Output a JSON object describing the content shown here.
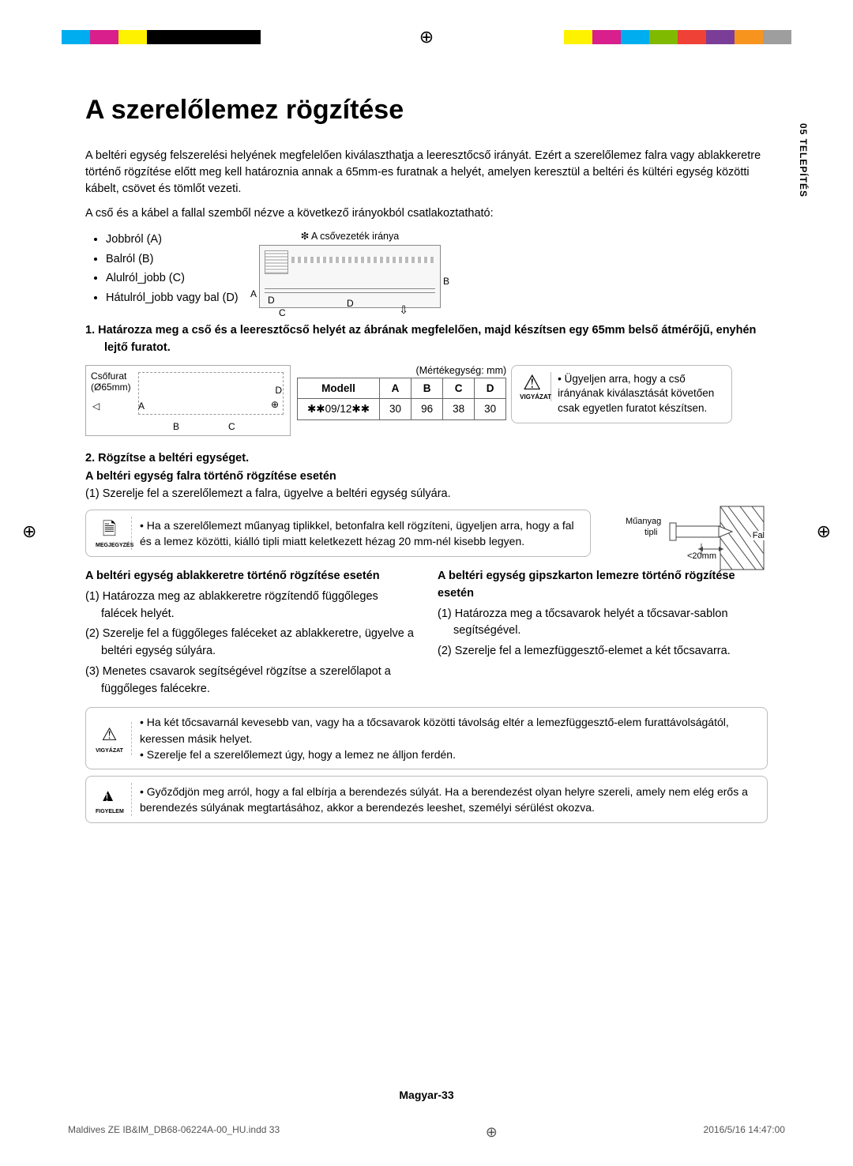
{
  "printbar": {
    "left_colors": [
      "#00aeef",
      "#d81f8c",
      "#fff200",
      "#000000",
      "#000000",
      "#000000",
      "#000000"
    ],
    "right_colors": [
      "#fff200",
      "#d81f8c",
      "#00aeef",
      "#7fba00",
      "#ef4136",
      "#7a3e98",
      "#f7941d",
      "#9e9e9e"
    ]
  },
  "sidetab": "05   TELEPÍTÉS",
  "title": "A szerelőlemez rögzítése",
  "intro1": "A beltéri egység felszerelési helyének megfelelően kiválaszthatja a leeresztőcső irányát. Ezért a szerelőlemez falra vagy ablakkeretre történő rögzítése előtt meg kell határoznia annak a 65mm-es furatnak a helyét, amelyen keresztül a beltéri és kültéri egység közötti kábelt, csövet és tömlőt vezeti.",
  "intro2": "A cső és a kábel a fallal szemből nézve a következő irányokból csatlakoztatható:",
  "directions": [
    "Jobbról (A)",
    "Balról (B)",
    "Alulról_jobb (C)",
    "Hátulról_jobb vagy bal (D)"
  ],
  "pipedir_label": "❇ A csővezeték iránya",
  "diagram_letters": {
    "a": "A",
    "b": "B",
    "c": "C",
    "d": "D",
    "d2": "D"
  },
  "step1": "1.   Határozza meg a cső és a leeresztőcső helyét az ábrának megfelelően, majd készítsen egy 65mm belső átmérőjű, enyhén lejtő furatot.",
  "drill_label1": "Csőfurat",
  "drill_label2": "(Ø65mm)",
  "unit_label": "(Mértékegység: mm)",
  "table": {
    "headers": [
      "Modell",
      "A",
      "B",
      "C",
      "D"
    ],
    "row": [
      "✱✱09/12✱✱",
      "30",
      "96",
      "38",
      "30"
    ]
  },
  "caution1": "Ügyeljen arra, hogy a cső irányának kiválasztását követően csak egyetlen furatot készítsen.",
  "caution_label": "VIGYÁZAT",
  "step2": "2.   Rögzítse a beltéri egységet.",
  "sub_wall_title": "A beltéri egység falra történő rögzítése esetén",
  "sub_wall_1": "(1) Szerelje fel a szerelőlemezt a falra, ügyelve a beltéri egység súlyára.",
  "note1": "Ha a szerelőlemezt műanyag tiplikkel, betonfalra kell rögzíteni, ügyeljen arra, hogy a fal és a lemez közötti, kiálló tipli miatt keletkezett hézag 20 mm-nél kisebb legyen.",
  "note_label": "MEGJEGYZÉS",
  "anchor": {
    "l1": "Műanyag",
    "l2": "tipli",
    "l3": "Fal",
    "l4": "<20mm"
  },
  "col_left_title": "A beltéri egység ablakkeretre történő rögzítése esetén",
  "col_left": [
    "(1) Határozza meg az ablakkeretre rögzítendő függőleges falécek helyét.",
    "(2) Szerelje fel a függőleges faléceket az ablakkeretre, ügyelve a beltéri egység súlyára.",
    "(3) Menetes csavarok segítségével rögzítse a szerelőlapot a függőleges falécekre."
  ],
  "col_right_title": "A beltéri egység gipszkarton lemezre történő rögzítése esetén",
  "col_right": [
    "(1) Határozza meg a tőcsavarok helyét a tőcsavar-sablon segítségével.",
    "(2) Szerelje fel a lemezfüggesztő-elemet a két tőcsavarra."
  ],
  "caution2_a": "Ha két tőcsavarnál kevesebb van, vagy ha a tőcsavarok közötti távolság eltér a lemezfüggesztő-elem furattávolságától, keressen másik helyet.",
  "caution2_b": "Szerelje fel a szerelőlemezt úgy, hogy a lemez ne álljon ferdén.",
  "warn_label": "FIGYELEM",
  "warn_text": "Győződjön meg arról, hogy a fal elbírja a berendezés súlyát. Ha a berendezést olyan helyre szereli, amely nem elég erős a berendezés súlyának megtartásához, akkor a berendezés leeshet, személyi sérülést okozva.",
  "footer_page": "Magyar-33",
  "footer_left": "Maldives ZE IB&IM_DB68-06224A-00_HU.indd   33",
  "footer_right": "2016/5/16   14:47:00"
}
